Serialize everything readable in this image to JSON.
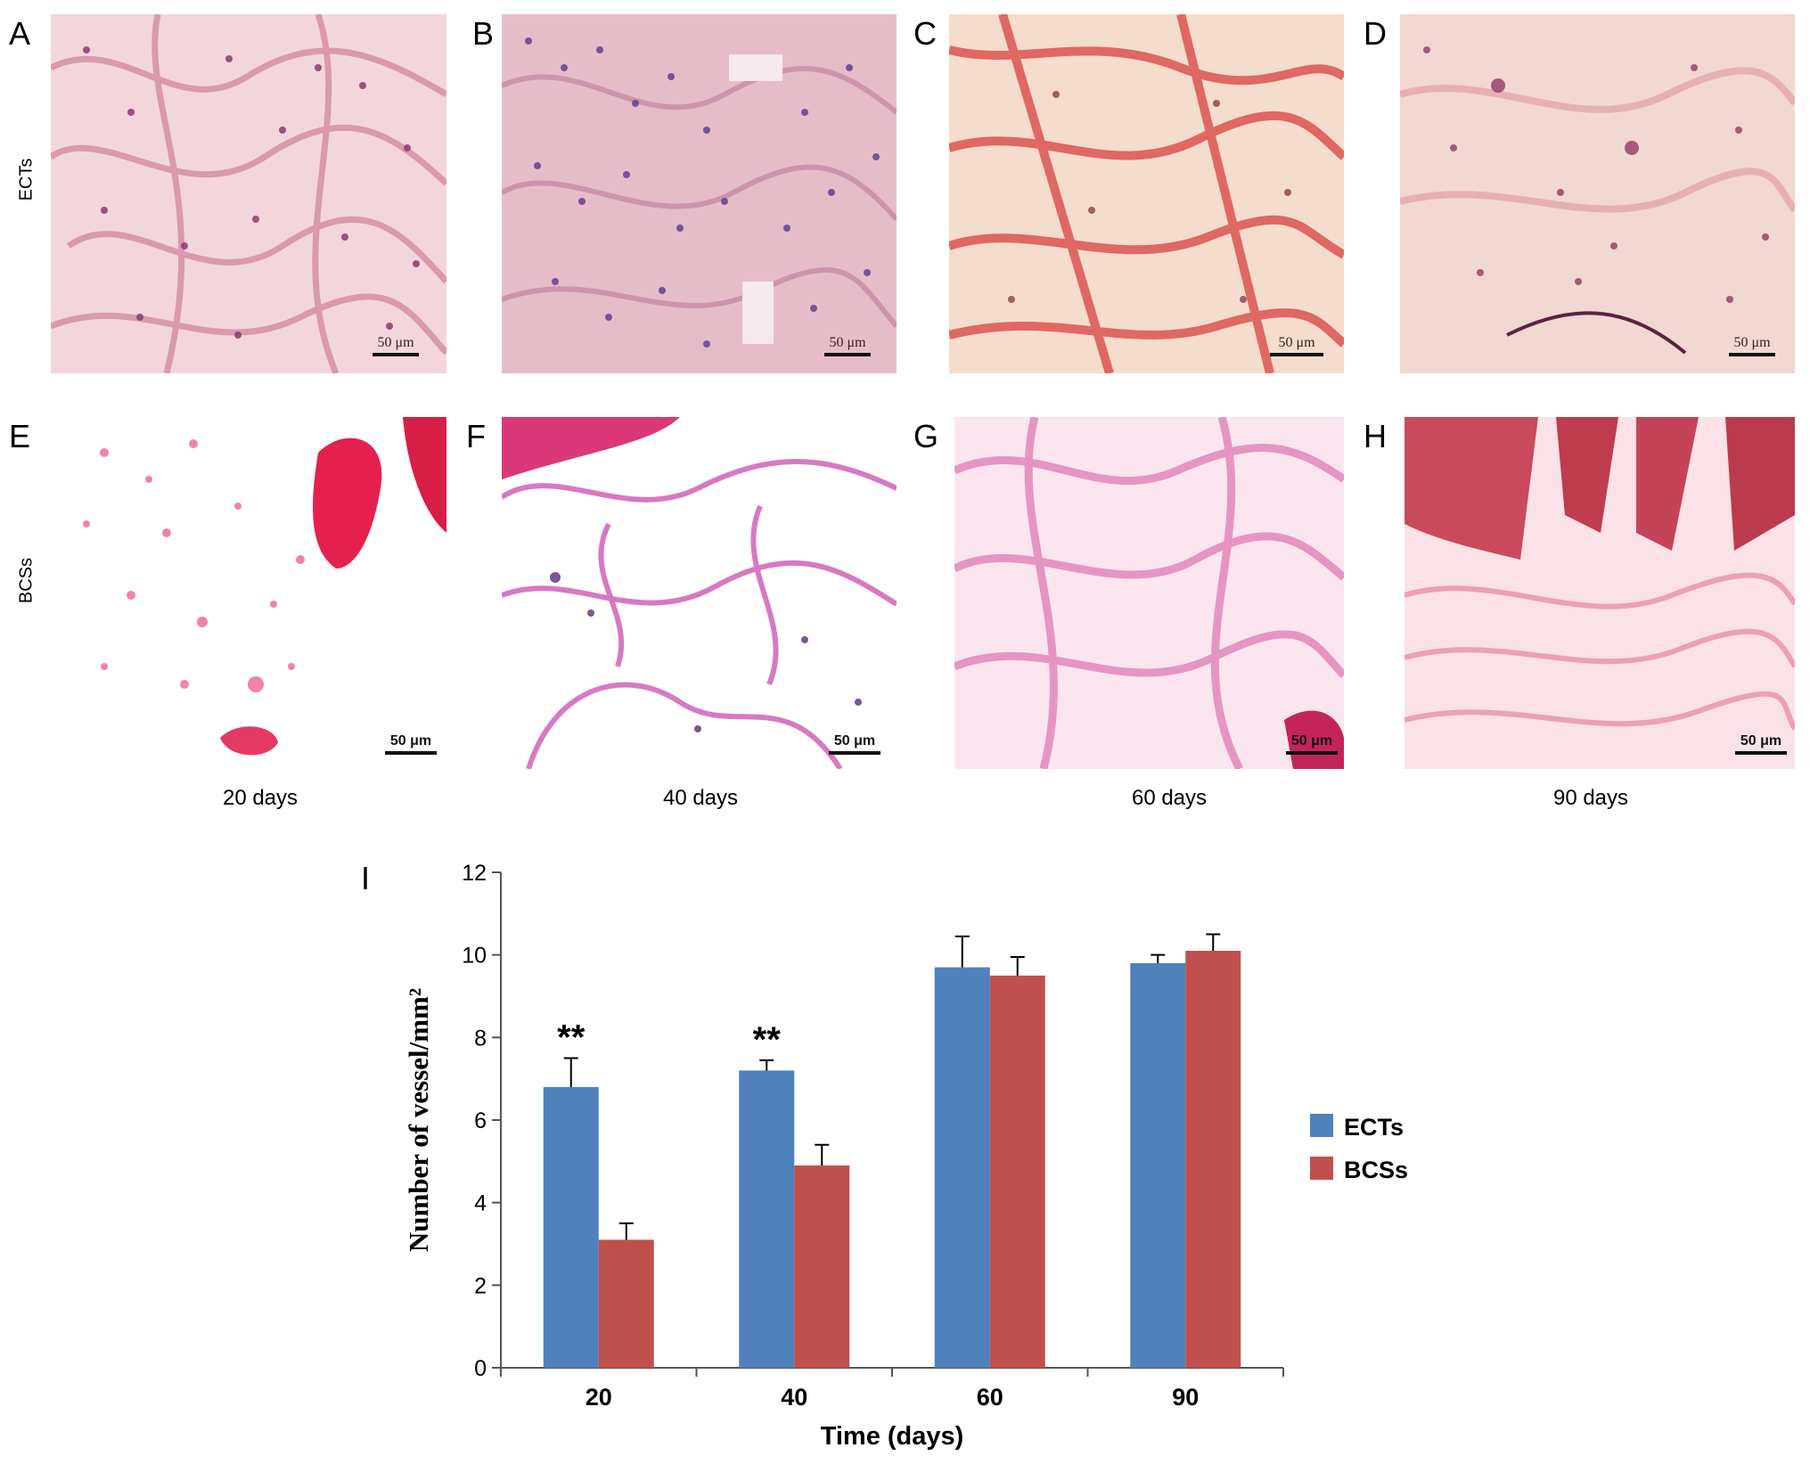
{
  "panels": {
    "letters": [
      "A",
      "B",
      "C",
      "D",
      "E",
      "F",
      "G",
      "H",
      "I"
    ],
    "row_labels": [
      "ECTs",
      "BCSs"
    ],
    "scale_bar_label": "50 μm",
    "day_labels": [
      "20 days",
      "40 days",
      "60 days",
      "90 days"
    ]
  },
  "colors": {
    "ects": "#4f81bd",
    "bcss": "#c0504d",
    "he_pink": "#e58aa5",
    "he_purple": "#7a3f86",
    "he_red": "#d63b3b"
  },
  "chart_data": {
    "type": "bar",
    "categories": [
      "20",
      "40",
      "60",
      "90"
    ],
    "series": [
      {
        "name": "ECTs",
        "values": [
          6.8,
          7.2,
          9.7,
          9.8
        ],
        "errors": [
          0.7,
          0.25,
          0.75,
          0.2
        ]
      },
      {
        "name": "BCSs",
        "values": [
          3.1,
          4.9,
          9.5,
          10.1
        ],
        "errors": [
          0.4,
          0.5,
          0.45,
          0.4
        ]
      }
    ],
    "significance": [
      "**",
      "**",
      "",
      ""
    ],
    "xlabel": "Time (days)",
    "ylabel": "Number of vessel/mm²",
    "ylim": [
      0,
      12
    ],
    "yticks": [
      0,
      2,
      4,
      6,
      8,
      10,
      12
    ],
    "legend": "right",
    "grid": false
  }
}
